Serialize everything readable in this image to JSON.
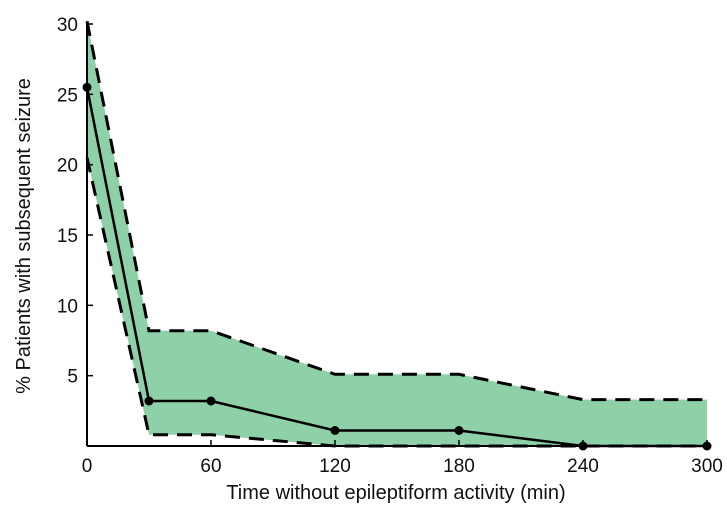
{
  "chart_data": {
    "type": "area",
    "title": "",
    "xlabel": "Time without epileptiform activity (min)",
    "ylabel": "% Patients with subsequent seizure",
    "xlim": [
      0,
      300
    ],
    "ylim": [
      0,
      30
    ],
    "x_ticks": [
      0,
      60,
      120,
      180,
      240,
      300
    ],
    "y_ticks": [
      5,
      10,
      15,
      20,
      25,
      30
    ],
    "grid": false,
    "legend": "none",
    "colors": {
      "band": "#8ed0a8",
      "line": "#000000"
    },
    "series": [
      {
        "role": "estimate",
        "style": "solid-with-markers",
        "x": [
          0,
          30,
          60,
          120,
          180,
          240,
          300
        ],
        "y": [
          25.5,
          3.2,
          3.2,
          1.1,
          1.1,
          0.0,
          0.0
        ]
      },
      {
        "role": "upper-bound",
        "style": "dashed",
        "x": [
          0,
          30,
          60,
          120,
          180,
          240,
          300
        ],
        "y": [
          30.2,
          8.2,
          8.2,
          5.1,
          5.1,
          3.3,
          3.3
        ]
      },
      {
        "role": "lower-bound",
        "style": "dashed",
        "x": [
          0,
          30,
          60,
          120,
          180,
          240,
          300
        ],
        "y": [
          20.5,
          0.8,
          0.8,
          0.0,
          0.0,
          0.0,
          0.0
        ]
      }
    ]
  }
}
